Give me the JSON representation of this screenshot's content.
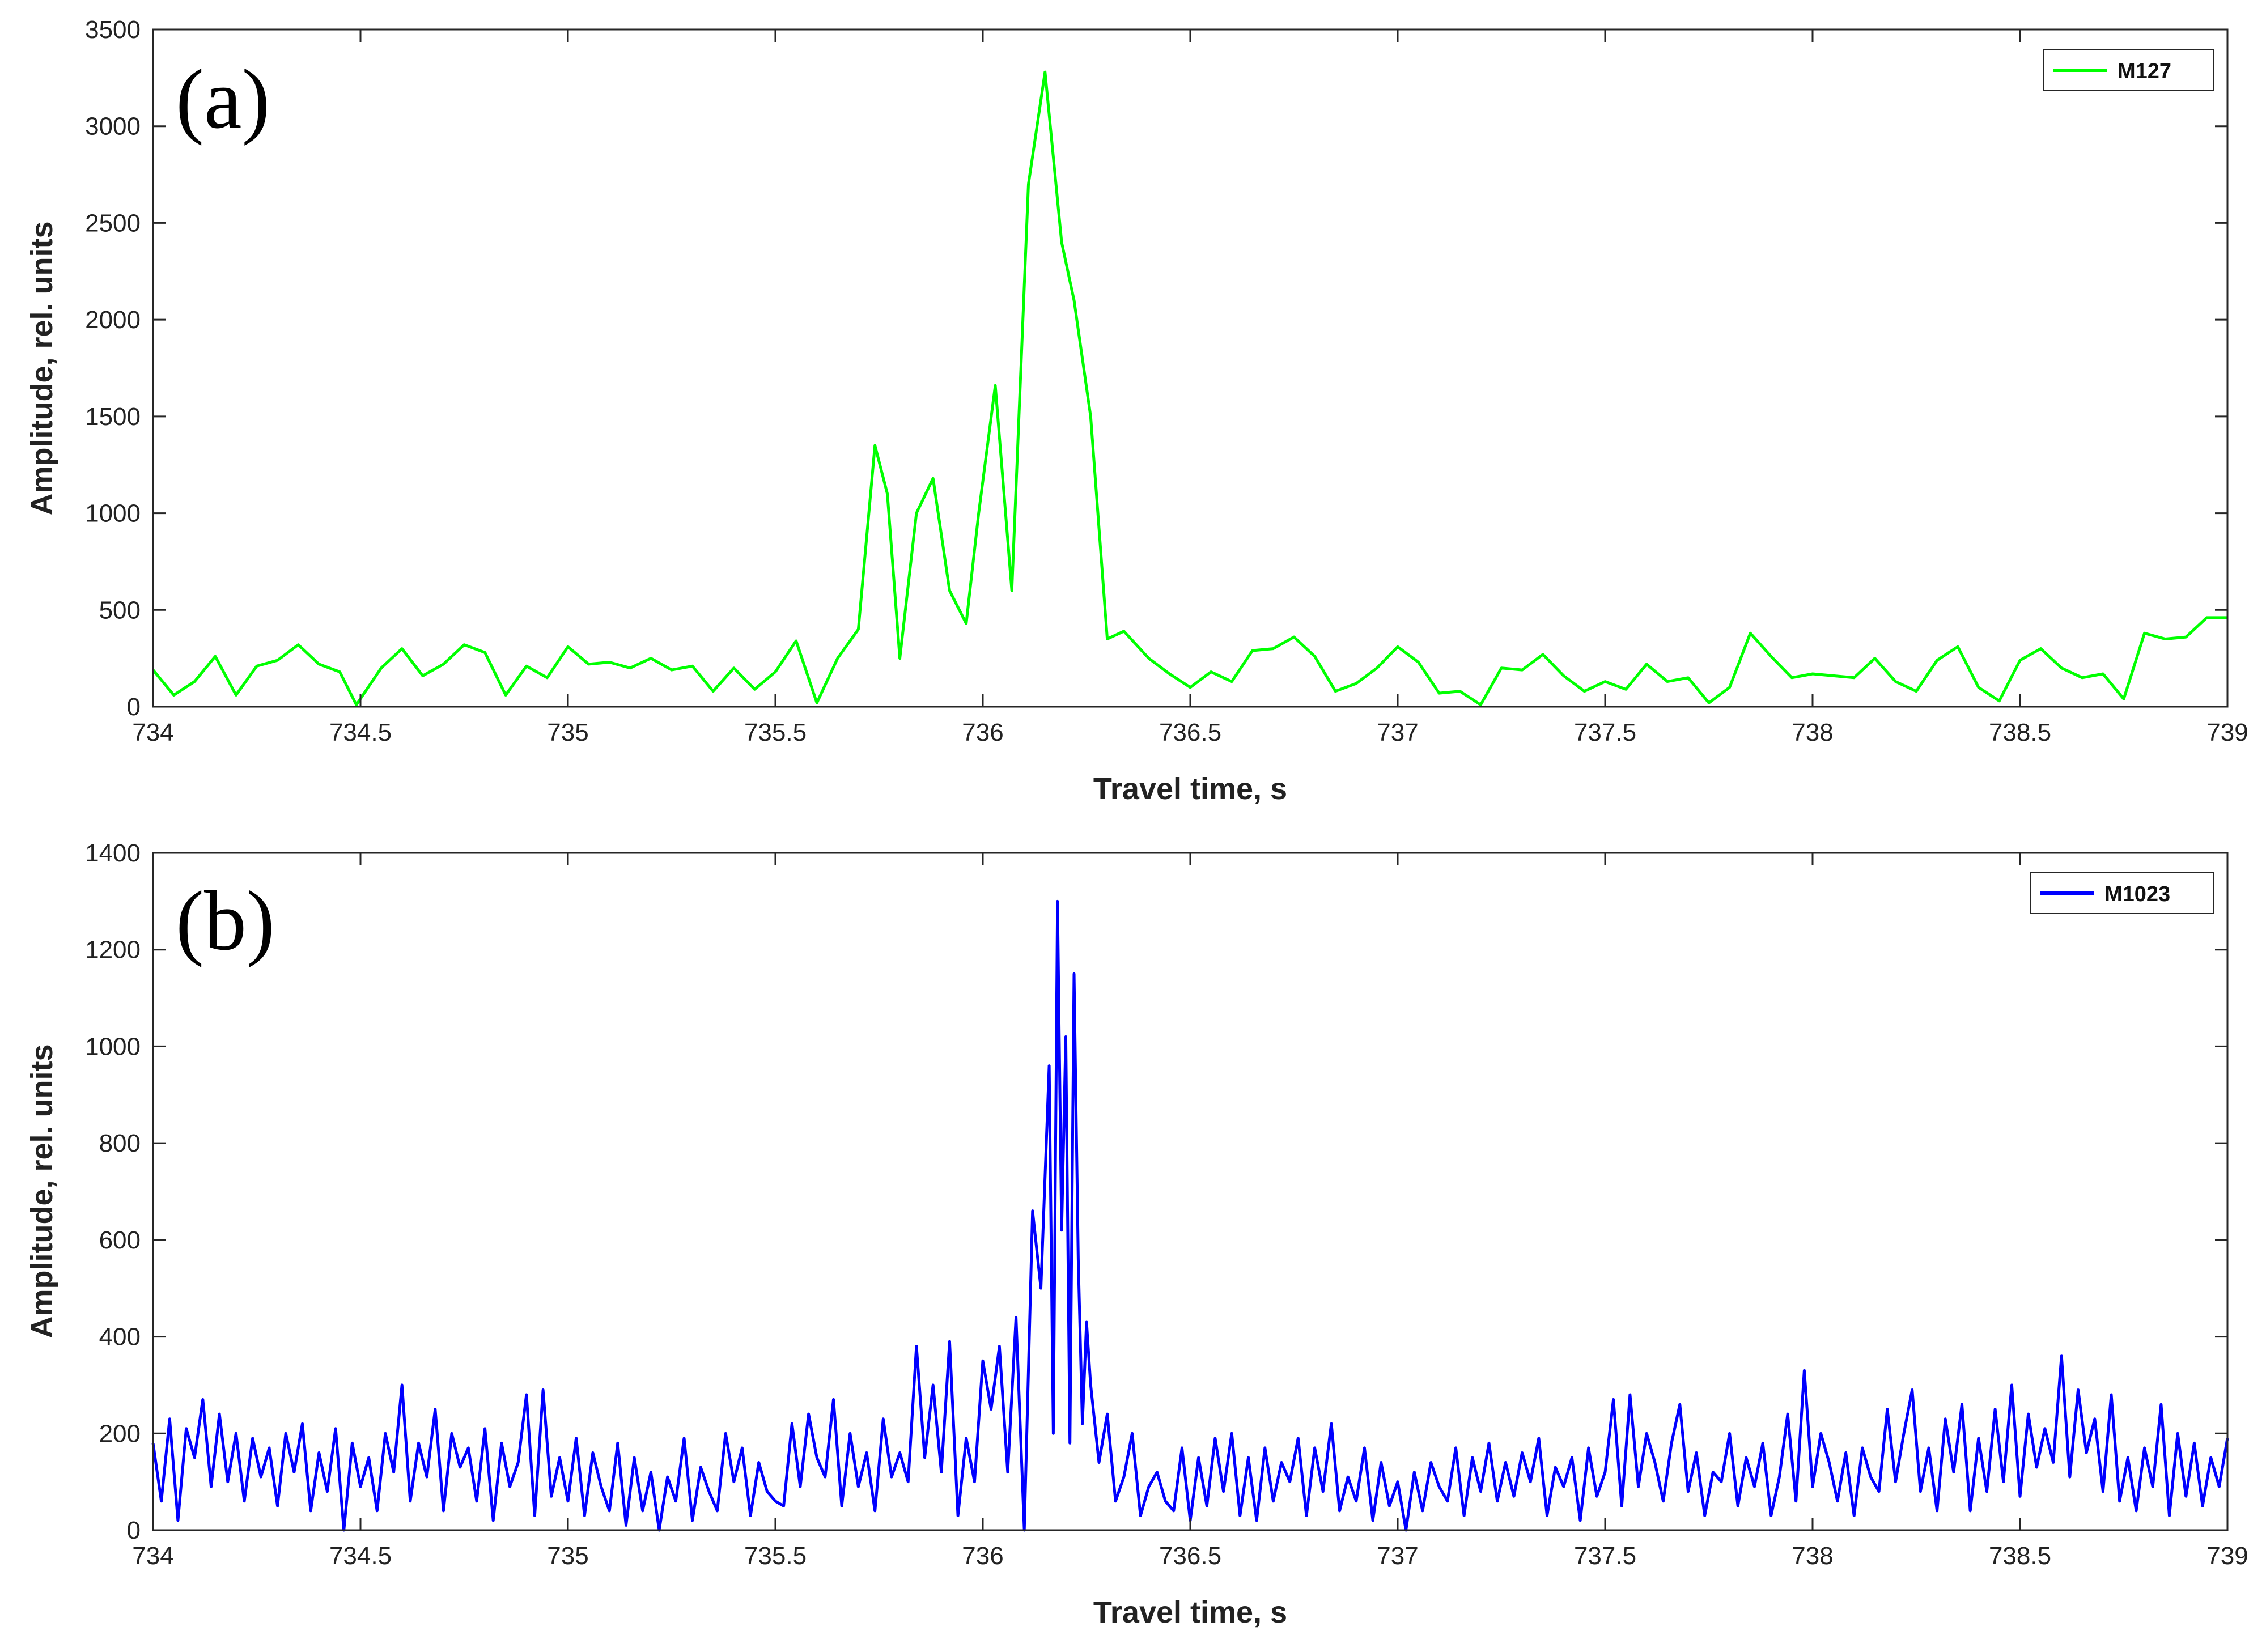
{
  "chart_data": [
    {
      "type": "line",
      "panel_label": "(a)",
      "xlabel": "Travel time, s",
      "ylabel": "Amplitude, rel. units",
      "xlim": [
        734,
        739
      ],
      "ylim": [
        0,
        3500
      ],
      "xticks": [
        734,
        734.5,
        735,
        735.5,
        736,
        736.5,
        737,
        737.5,
        738,
        738.5,
        739
      ],
      "yticks": [
        0,
        500,
        1000,
        1500,
        2000,
        2500,
        3000,
        3500
      ],
      "grid": false,
      "legend_position": "top-right",
      "series": [
        {
          "name": "M127",
          "color": "#00ff00",
          "x": [
            734.0,
            734.05,
            734.1,
            734.15,
            734.2,
            734.25,
            734.3,
            734.35,
            734.4,
            734.45,
            734.49,
            734.55,
            734.6,
            734.65,
            734.7,
            734.75,
            734.8,
            734.85,
            734.9,
            734.95,
            735.0,
            735.05,
            735.1,
            735.15,
            735.2,
            735.25,
            735.3,
            735.35,
            735.4,
            735.45,
            735.5,
            735.55,
            735.6,
            735.65,
            735.7,
            735.74,
            735.77,
            735.8,
            735.84,
            735.88,
            735.92,
            735.96,
            735.99,
            736.03,
            736.07,
            736.11,
            736.15,
            736.19,
            736.22,
            736.26,
            736.3,
            736.34,
            736.4,
            736.45,
            736.5,
            736.55,
            736.6,
            736.65,
            736.7,
            736.75,
            736.8,
            736.85,
            736.9,
            736.95,
            737.0,
            737.05,
            737.1,
            737.15,
            737.2,
            737.25,
            737.3,
            737.35,
            737.4,
            737.45,
            737.5,
            737.55,
            737.6,
            737.65,
            737.7,
            737.75,
            737.8,
            737.85,
            737.9,
            737.95,
            738.0,
            738.05,
            738.1,
            738.15,
            738.2,
            738.25,
            738.3,
            738.35,
            738.4,
            738.45,
            738.5,
            738.55,
            738.6,
            738.65,
            738.7,
            738.75,
            738.8,
            738.85,
            738.9,
            738.95,
            739.0
          ],
          "y": [
            190,
            60,
            130,
            260,
            60,
            210,
            240,
            320,
            220,
            180,
            10,
            200,
            300,
            160,
            220,
            320,
            280,
            60,
            210,
            150,
            310,
            220,
            230,
            200,
            250,
            190,
            210,
            80,
            200,
            90,
            180,
            340,
            20,
            250,
            400,
            1350,
            1100,
            250,
            1000,
            1180,
            600,
            430,
            1000,
            1660,
            600,
            2700,
            3280,
            2400,
            2100,
            1500,
            350,
            390,
            250,
            170,
            100,
            180,
            130,
            290,
            300,
            360,
            260,
            80,
            120,
            200,
            310,
            230,
            70,
            80,
            10,
            200,
            190,
            270,
            160,
            80,
            130,
            90,
            220,
            130,
            150,
            20,
            100,
            380,
            260,
            150,
            170,
            160,
            150,
            250,
            130,
            80,
            240,
            310,
            100,
            30,
            240,
            300,
            200,
            150,
            170,
            40,
            380,
            350,
            360,
            460,
            460
          ]
        }
      ]
    },
    {
      "type": "line",
      "panel_label": "(b)",
      "xlabel": "Travel time, s",
      "ylabel": "Amplitude, rel. units",
      "xlim": [
        734,
        739
      ],
      "ylim": [
        0,
        1400
      ],
      "xticks": [
        734,
        734.5,
        735,
        735.5,
        736,
        736.5,
        737,
        737.5,
        738,
        738.5,
        739
      ],
      "yticks": [
        0,
        200,
        400,
        600,
        800,
        1000,
        1200,
        1400
      ],
      "grid": false,
      "legend_position": "top-right",
      "series": [
        {
          "name": "M1023",
          "color": "#0000ff",
          "x": [
            734.0,
            734.02,
            734.04,
            734.06,
            734.08,
            734.1,
            734.12,
            734.14,
            734.16,
            734.18,
            734.2,
            734.22,
            734.24,
            734.26,
            734.28,
            734.3,
            734.32,
            734.34,
            734.36,
            734.38,
            734.4,
            734.42,
            734.44,
            734.46,
            734.48,
            734.5,
            734.52,
            734.54,
            734.56,
            734.58,
            734.6,
            734.62,
            734.64,
            734.66,
            734.68,
            734.7,
            734.72,
            734.74,
            734.76,
            734.78,
            734.8,
            734.82,
            734.84,
            734.86,
            734.88,
            734.9,
            734.92,
            734.94,
            734.96,
            734.98,
            735.0,
            735.02,
            735.04,
            735.06,
            735.08,
            735.1,
            735.12,
            735.14,
            735.16,
            735.18,
            735.2,
            735.22,
            735.24,
            735.26,
            735.28,
            735.3,
            735.32,
            735.34,
            735.36,
            735.38,
            735.4,
            735.42,
            735.44,
            735.46,
            735.48,
            735.5,
            735.52,
            735.54,
            735.56,
            735.58,
            735.6,
            735.62,
            735.64,
            735.66,
            735.68,
            735.7,
            735.72,
            735.74,
            735.76,
            735.78,
            735.8,
            735.82,
            735.84,
            735.86,
            735.88,
            735.9,
            735.92,
            735.94,
            735.96,
            735.98,
            736.0,
            736.02,
            736.04,
            736.06,
            736.08,
            736.1,
            736.12,
            736.14,
            736.16,
            736.17,
            736.18,
            736.19,
            736.2,
            736.21,
            736.22,
            736.23,
            736.24,
            736.25,
            736.26,
            736.28,
            736.3,
            736.32,
            736.34,
            736.36,
            736.38,
            736.4,
            736.42,
            736.44,
            736.46,
            736.48,
            736.5,
            736.52,
            736.54,
            736.56,
            736.58,
            736.6,
            736.62,
            736.64,
            736.66,
            736.68,
            736.7,
            736.72,
            736.74,
            736.76,
            736.78,
            736.8,
            736.82,
            736.84,
            736.86,
            736.88,
            736.9,
            736.92,
            736.94,
            736.96,
            736.98,
            737.0,
            737.02,
            737.04,
            737.06,
            737.08,
            737.1,
            737.12,
            737.14,
            737.16,
            737.18,
            737.2,
            737.22,
            737.24,
            737.26,
            737.28,
            737.3,
            737.32,
            737.34,
            737.36,
            737.38,
            737.4,
            737.42,
            737.44,
            737.46,
            737.48,
            737.5,
            737.52,
            737.54,
            737.56,
            737.58,
            737.6,
            737.62,
            737.64,
            737.66,
            737.68,
            737.7,
            737.72,
            737.74,
            737.76,
            737.78,
            737.8,
            737.82,
            737.84,
            737.86,
            737.88,
            737.9,
            737.92,
            737.94,
            737.96,
            737.98,
            738.0,
            738.02,
            738.04,
            738.06,
            738.08,
            738.1,
            738.12,
            738.14,
            738.16,
            738.18,
            738.2,
            738.22,
            738.24,
            738.26,
            738.28,
            738.3,
            738.32,
            738.34,
            738.36,
            738.38,
            738.4,
            738.42,
            738.44,
            738.46,
            738.48,
            738.5,
            738.52,
            738.54,
            738.56,
            738.58,
            738.6,
            738.62,
            738.64,
            738.66,
            738.68,
            738.7,
            738.72,
            738.74,
            738.76,
            738.78,
            738.8,
            738.82,
            738.84,
            738.86,
            738.88,
            738.9,
            738.92,
            738.94,
            738.96,
            738.98,
            739.0
          ],
          "y": [
            180,
            60,
            230,
            20,
            210,
            150,
            270,
            90,
            240,
            100,
            200,
            60,
            190,
            110,
            170,
            50,
            200,
            120,
            220,
            40,
            160,
            80,
            210,
            0,
            180,
            90,
            150,
            40,
            200,
            120,
            300,
            60,
            180,
            110,
            250,
            40,
            200,
            130,
            170,
            60,
            210,
            20,
            180,
            90,
            140,
            280,
            30,
            290,
            70,
            150,
            60,
            190,
            30,
            160,
            90,
            40,
            180,
            10,
            150,
            40,
            120,
            0,
            110,
            60,
            190,
            20,
            130,
            80,
            40,
            200,
            100,
            170,
            30,
            140,
            80,
            60,
            50,
            220,
            90,
            240,
            150,
            110,
            270,
            50,
            200,
            90,
            160,
            40,
            230,
            110,
            160,
            100,
            380,
            150,
            300,
            120,
            390,
            30,
            190,
            100,
            350,
            250,
            380,
            120,
            440,
            0,
            660,
            500,
            960,
            200,
            1300,
            620,
            1020,
            180,
            1150,
            560,
            220,
            430,
            300,
            140,
            240,
            60,
            110,
            200,
            30,
            90,
            120,
            60,
            40,
            170,
            20,
            150,
            50,
            190,
            80,
            200,
            30,
            150,
            20,
            170,
            60,
            140,
            100,
            190,
            30,
            170,
            80,
            220,
            40,
            110,
            60,
            170,
            20,
            140,
            50,
            100,
            0,
            120,
            40,
            140,
            90,
            60,
            170,
            30,
            150,
            80,
            180,
            60,
            140,
            70,
            160,
            100,
            190,
            30,
            130,
            90,
            150,
            20,
            170,
            70,
            120,
            270,
            50,
            280,
            90,
            200,
            140,
            60,
            180,
            260,
            80,
            160,
            30,
            120,
            100,
            200,
            50,
            150,
            90,
            180,
            30,
            110,
            240,
            60,
            330,
            90,
            200,
            140,
            60,
            160,
            30,
            170,
            110,
            80,
            250,
            100,
            200,
            290,
            80,
            170,
            40,
            230,
            120,
            260,
            40,
            190,
            80,
            250,
            100,
            300,
            70,
            240,
            130,
            210,
            140,
            360,
            110,
            290,
            160,
            230,
            80,
            280,
            60,
            150,
            40,
            170,
            90,
            260,
            30,
            200,
            70,
            180,
            50,
            150,
            90,
            190
          ]
        }
      ]
    }
  ]
}
